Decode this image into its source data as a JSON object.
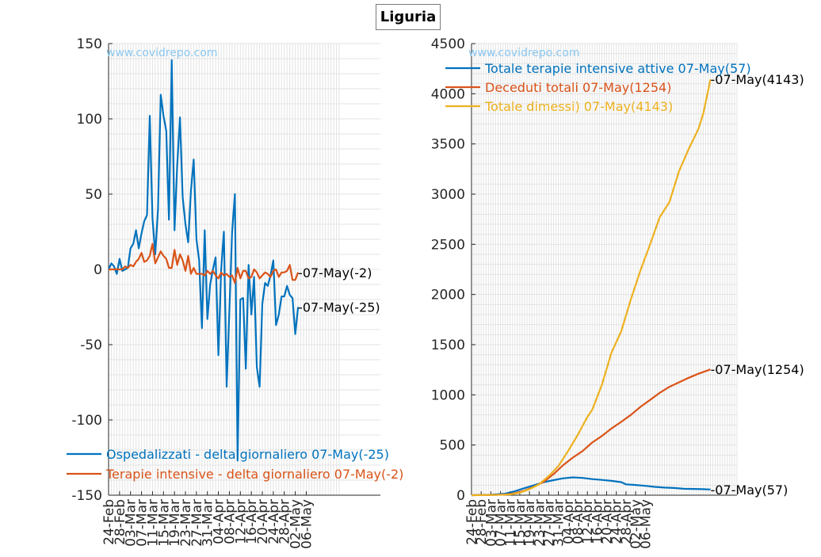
{
  "title": "Liguria",
  "watermark": "www.covidrepo.com",
  "colors": {
    "blue": "#0072bd",
    "orange": "#d95319",
    "yellow": "#edb120",
    "grid": "#e3e3e3",
    "axis": "#262626"
  },
  "chart_data": [
    {
      "type": "line",
      "xlabels": [
        "24-Feb",
        "28-Feb",
        "03-Mar",
        "07-Mar",
        "11-Mar",
        "15-Mar",
        "19-Mar",
        "23-Mar",
        "27-Mar",
        "31-Mar",
        "04-Apr",
        "08-Apr",
        "12-Apr",
        "16-Apr",
        "20-Apr",
        "24-Apr",
        "28-Apr",
        "02-May",
        "06-May"
      ],
      "ylim": [
        -150,
        150
      ],
      "yticks": [
        -150,
        -100,
        -50,
        0,
        50,
        100,
        150
      ],
      "grid": true,
      "legend_position": "bottom-left",
      "series": [
        {
          "name": "Ospedalizzati - delta giornaliero 07-May(-25)",
          "end_label": "-07-May(-25)",
          "color": "#0072bd",
          "values": [
            0,
            4,
            2,
            -3,
            7,
            -1,
            0,
            1,
            14,
            17,
            26,
            14,
            24,
            32,
            36,
            102,
            34,
            10,
            40,
            116,
            102,
            92,
            33,
            139,
            26,
            69,
            101,
            48,
            30,
            18,
            52,
            73,
            20,
            6,
            -39,
            26,
            -33,
            -10,
            0,
            8,
            -57,
            0,
            25,
            -78,
            -28,
            25,
            50,
            -127,
            -20,
            -19,
            -66,
            3,
            -30,
            -5,
            -65,
            -78,
            -23,
            -9,
            -11,
            -4,
            6,
            -37,
            -30,
            -18,
            -18,
            -11,
            -17,
            -19,
            -43,
            -25
          ]
        },
        {
          "name": "Terapie intensive - delta giornaliero 07-May(-2)",
          "end_label": "-07-May(-2)",
          "color": "#d95319",
          "values": [
            0,
            0,
            0,
            0,
            0,
            0,
            2,
            1,
            3,
            2,
            5,
            7,
            11,
            5,
            6,
            9,
            17,
            4,
            8,
            12,
            9,
            7,
            1,
            1,
            13,
            3,
            10,
            6,
            -1,
            9,
            -3,
            1,
            -3,
            -3,
            -3,
            -4,
            -1,
            -3,
            -1,
            -4,
            -6,
            -2,
            -4,
            -3,
            -5,
            -4,
            -9,
            1,
            -6,
            -1,
            -1,
            -6,
            -5,
            0,
            -2,
            -6,
            -4,
            -2,
            -3,
            -5,
            -1,
            0,
            -5,
            -2,
            -2,
            -1,
            3,
            -7,
            -7,
            -2
          ]
        }
      ]
    },
    {
      "type": "line",
      "xlabels": [
        "24-Feb",
        "28-Feb",
        "03-Mar",
        "07-Mar",
        "11-Mar",
        "15-Mar",
        "19-Mar",
        "23-Mar",
        "27-Mar",
        "31-Mar",
        "04-Apr",
        "08-Apr",
        "12-Apr",
        "16-Apr",
        "20-Apr",
        "24-Apr",
        "28-Apr",
        "02-May",
        "06-May"
      ],
      "ylim": [
        0,
        4500
      ],
      "yticks": [
        0,
        500,
        1000,
        1500,
        2000,
        2500,
        3000,
        3500,
        4000,
        4500
      ],
      "grid": true,
      "legend_position": "top-left",
      "series": [
        {
          "name": "Totale terapie intensive attive 07-May(57)",
          "end_label": "-07-May(57)",
          "color": "#0072bd",
          "points": [
            [
              0,
              0
            ],
            [
              8,
              4
            ],
            [
              14,
              15
            ],
            [
              18,
              40
            ],
            [
              22,
              70
            ],
            [
              26,
              100
            ],
            [
              30,
              130
            ],
            [
              34,
              150
            ],
            [
              38,
              168
            ],
            [
              42,
              178
            ],
            [
              46,
              172
            ],
            [
              50,
              160
            ],
            [
              54,
              152
            ],
            [
              58,
              143
            ],
            [
              62,
              130
            ],
            [
              64,
              108
            ],
            [
              68,
              102
            ],
            [
              72,
              93
            ],
            [
              76,
              83
            ],
            [
              80,
              76
            ],
            [
              84,
              72
            ],
            [
              88,
              64
            ],
            [
              92,
              62
            ],
            [
              96,
              60
            ],
            [
              99,
              57
            ]
          ]
        },
        {
          "name": "Deceduti totali 07-May(1254)",
          "end_label": "-07-May(1254)",
          "color": "#d95319",
          "points": [
            [
              0,
              0
            ],
            [
              8,
              2
            ],
            [
              14,
              6
            ],
            [
              18,
              20
            ],
            [
              22,
              45
            ],
            [
              26,
              85
            ],
            [
              30,
              135
            ],
            [
              34,
              210
            ],
            [
              38,
              300
            ],
            [
              42,
              375
            ],
            [
              46,
              440
            ],
            [
              50,
              525
            ],
            [
              54,
              590
            ],
            [
              58,
              665
            ],
            [
              62,
              730
            ],
            [
              66,
              800
            ],
            [
              70,
              880
            ],
            [
              74,
              950
            ],
            [
              78,
              1020
            ],
            [
              82,
              1080
            ],
            [
              86,
              1125
            ],
            [
              90,
              1170
            ],
            [
              94,
              1210
            ],
            [
              99,
              1254
            ]
          ]
        },
        {
          "name": "Totale dimessi) 07-May(4143)",
          "end_label": "-07-May(4143)",
          "color": "#edb120",
          "points": [
            [
              0,
              0
            ],
            [
              10,
              2
            ],
            [
              16,
              8
            ],
            [
              20,
              25
            ],
            [
              24,
              60
            ],
            [
              28,
              110
            ],
            [
              32,
              190
            ],
            [
              36,
              290
            ],
            [
              40,
              440
            ],
            [
              44,
              600
            ],
            [
              48,
              780
            ],
            [
              50,
              850
            ],
            [
              54,
              1100
            ],
            [
              58,
              1420
            ],
            [
              62,
              1630
            ],
            [
              66,
              1950
            ],
            [
              70,
              2240
            ],
            [
              74,
              2500
            ],
            [
              78,
              2770
            ],
            [
              82,
              2920
            ],
            [
              86,
              3230
            ],
            [
              90,
              3450
            ],
            [
              94,
              3650
            ],
            [
              96,
              3800
            ],
            [
              99,
              4143
            ]
          ]
        }
      ]
    }
  ]
}
